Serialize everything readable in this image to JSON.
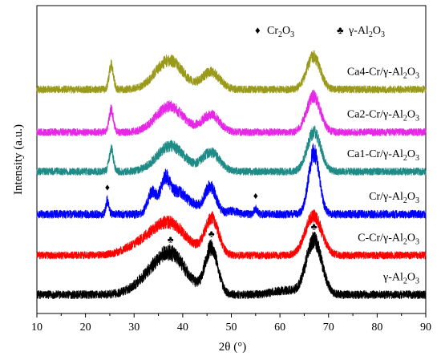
{
  "chart_data": {
    "type": "line",
    "xlabel": "2θ (°)",
    "ylabel": "Intensity (a.u.)",
    "xlim": [
      10,
      90
    ],
    "x_ticks": [
      10,
      20,
      30,
      40,
      50,
      60,
      70,
      80,
      90
    ],
    "y_ticks_shown": false,
    "legend": {
      "placement": "top-right",
      "entries": [
        {
          "symbol": "♦",
          "label": "Cr",
          "sub": "2",
          "rest": "O",
          "sub2": "3"
        },
        {
          "symbol": "♣",
          "label": "γ-Al",
          "sub": "2",
          "rest": "O",
          "sub2": "3"
        }
      ]
    },
    "series": [
      {
        "name": "γ-Al2O3",
        "label_parts": [
          "γ-Al",
          "2",
          "O",
          "3"
        ],
        "color": "#000000",
        "offset": 0,
        "background": 0.5,
        "noise": 0.55,
        "peaks": [
          [
            37.5,
            2.3,
            3.2
          ],
          [
            45.9,
            2.7,
            1.3
          ],
          [
            67.0,
            3.2,
            1.6
          ],
          [
            32.5,
            0.6,
            3.0
          ],
          [
            61.0,
            0.25,
            2.5
          ]
        ],
        "markers": [
          {
            "symbol": "♣",
            "x": 37.5
          },
          {
            "symbol": "♣",
            "x": 45.9
          },
          {
            "symbol": "♣",
            "x": 67.0
          }
        ]
      },
      {
        "name": "C-Cr/γ-Al2O3",
        "label_parts": [
          "C-Cr/γ-Al",
          "2",
          "O",
          "3"
        ],
        "color": "#ff0000",
        "offset": 2.3,
        "background": 0.5,
        "noise": 0.5,
        "peaks": [
          [
            37.0,
            1.9,
            3.6
          ],
          [
            46.0,
            2.1,
            1.4
          ],
          [
            66.9,
            2.3,
            1.7
          ],
          [
            30.5,
            0.4,
            3.0
          ]
        ],
        "markers": []
      },
      {
        "name": "Cr/γ-Al2O3",
        "label_parts": [
          "Cr/γ-Al",
          "2",
          "O",
          "3"
        ],
        "color": "#0000ff",
        "offset": 4.7,
        "background": 0.5,
        "noise": 0.55,
        "peaks": [
          [
            24.5,
            0.8,
            0.3
          ],
          [
            33.7,
            1.3,
            0.9
          ],
          [
            36.4,
            1.9,
            1.0
          ],
          [
            39.0,
            1.2,
            1.5
          ],
          [
            42.0,
            0.5,
            1.5
          ],
          [
            45.7,
            1.6,
            1.2
          ],
          [
            55.0,
            0.3,
            0.35
          ],
          [
            67.0,
            3.6,
            1.1
          ],
          [
            50.2,
            0.2,
            1.0
          ]
        ],
        "markers": [
          {
            "symbol": "♦",
            "x": 24.5
          },
          {
            "symbol": "♦",
            "x": 55.0
          }
        ]
      },
      {
        "name": "Ca1-Cr/γ-Al2O3",
        "label_parts": [
          "Ca1-Cr/γ-Al",
          "2",
          "O",
          "3"
        ],
        "color": "#1f8b86",
        "offset": 7.2,
        "background": 0.5,
        "noise": 0.5,
        "peaks": [
          [
            25.3,
            1.3,
            0.45
          ],
          [
            37.5,
            1.5,
            2.8
          ],
          [
            45.8,
            1.1,
            1.8
          ],
          [
            67.0,
            2.3,
            1.4
          ]
        ],
        "markers": []
      },
      {
        "name": "Ca2-Cr/γ-Al2O3",
        "label_parts": [
          "Ca2-Cr/γ-Al",
          "2",
          "O",
          "3"
        ],
        "color": "#e627e6",
        "offset": 9.5,
        "background": 0.5,
        "noise": 0.5,
        "peaks": [
          [
            25.3,
            1.3,
            0.45
          ],
          [
            37.3,
            1.5,
            2.8
          ],
          [
            45.8,
            1.0,
            1.8
          ],
          [
            66.9,
            2.1,
            1.4
          ]
        ],
        "markers": []
      },
      {
        "name": "Ca4-Cr/γ-Al2O3",
        "label_parts": [
          "Ca4-Cr/γ-Al",
          "2",
          "O",
          "3"
        ],
        "color": "#9a9a1a",
        "offset": 12.0,
        "background": 0.5,
        "noise": 0.5,
        "peaks": [
          [
            25.3,
            1.4,
            0.45
          ],
          [
            37.2,
            1.7,
            2.8
          ],
          [
            45.8,
            1.0,
            1.8
          ],
          [
            66.9,
            1.9,
            1.4
          ]
        ],
        "markers": []
      }
    ]
  }
}
